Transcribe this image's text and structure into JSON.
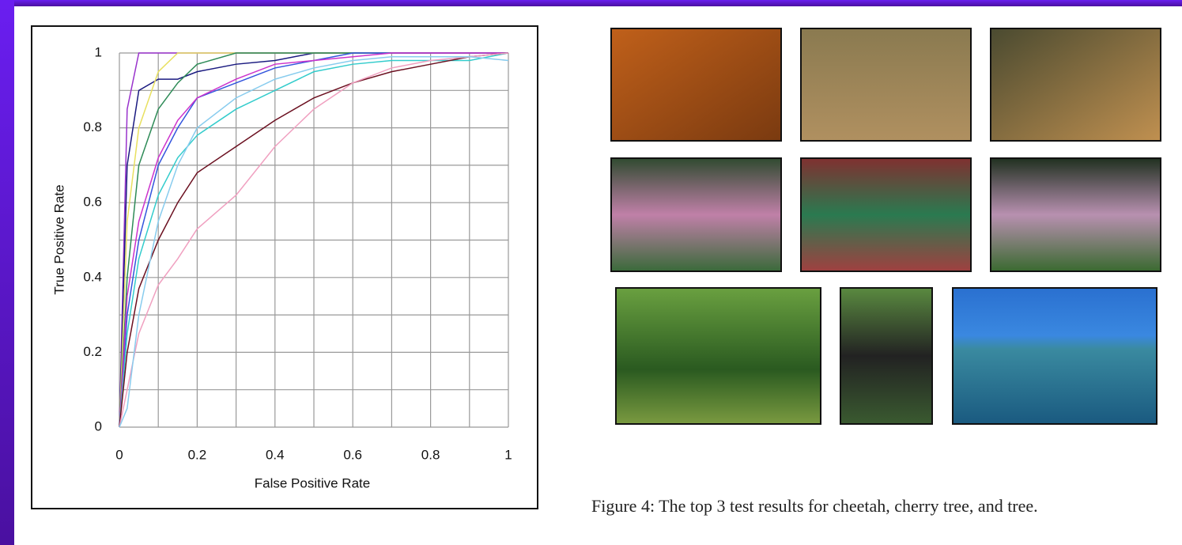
{
  "chart_data": {
    "type": "line",
    "xlabel": "False Positive Rate",
    "ylabel": "True Positive Rate",
    "xlim": [
      0,
      1
    ],
    "ylim": [
      0,
      1
    ],
    "xticks": [
      0,
      0.2,
      0.4,
      0.6,
      0.8,
      1
    ],
    "yticks": [
      0,
      0.2,
      0.4,
      0.6,
      0.8,
      1
    ],
    "xminor": [
      0.1,
      0.3,
      0.5,
      0.7,
      0.9
    ],
    "yminor": [
      0.1,
      0.3,
      0.5,
      0.7,
      0.9
    ],
    "grid": true,
    "x": [
      0,
      0.02,
      0.05,
      0.1,
      0.15,
      0.2,
      0.3,
      0.4,
      0.5,
      0.6,
      0.7,
      0.8,
      0.9,
      1
    ],
    "series": [
      {
        "color": "#9933cc",
        "values": [
          0,
          0.85,
          1,
          1,
          1,
          1,
          1,
          1,
          1,
          1,
          1,
          1,
          1,
          1
        ]
      },
      {
        "color": "#1a1a80",
        "values": [
          0,
          0.7,
          0.9,
          0.93,
          0.93,
          0.95,
          0.97,
          0.98,
          1,
          1,
          1,
          1,
          1,
          1
        ]
      },
      {
        "color": "#e8e060",
        "values": [
          0,
          0.55,
          0.8,
          0.95,
          1,
          1,
          1,
          1,
          1,
          1,
          1,
          1,
          1,
          1
        ]
      },
      {
        "color": "#2e8b57",
        "values": [
          0,
          0.4,
          0.7,
          0.85,
          0.92,
          0.97,
          1,
          1,
          1,
          1,
          1,
          1,
          1,
          1
        ]
      },
      {
        "color": "#3355dd",
        "values": [
          0,
          0.3,
          0.5,
          0.7,
          0.8,
          0.88,
          0.92,
          0.96,
          0.98,
          1,
          1,
          1,
          1,
          1
        ]
      },
      {
        "color": "#cc33cc",
        "values": [
          0,
          0.35,
          0.55,
          0.72,
          0.82,
          0.88,
          0.93,
          0.97,
          0.98,
          0.99,
          1,
          1,
          1,
          1
        ]
      },
      {
        "color": "#33cccc",
        "values": [
          0,
          0.25,
          0.45,
          0.62,
          0.72,
          0.78,
          0.85,
          0.9,
          0.95,
          0.97,
          0.98,
          0.98,
          0.98,
          1
        ]
      },
      {
        "color": "#6b1020",
        "values": [
          0,
          0.2,
          0.37,
          0.5,
          0.6,
          0.68,
          0.75,
          0.82,
          0.88,
          0.92,
          0.95,
          0.97,
          0.99,
          1
        ]
      },
      {
        "color": "#f0a0c0",
        "values": [
          0,
          0.1,
          0.25,
          0.38,
          0.45,
          0.53,
          0.62,
          0.75,
          0.85,
          0.92,
          0.96,
          0.98,
          0.99,
          1
        ]
      },
      {
        "color": "#88ccee",
        "values": [
          0,
          0.05,
          0.3,
          0.55,
          0.7,
          0.8,
          0.88,
          0.93,
          0.96,
          0.98,
          0.99,
          0.99,
          0.99,
          0.98
        ]
      }
    ]
  },
  "caption": "Figure 4: The top 3 test results for cheetah, cherry tree, and tree."
}
